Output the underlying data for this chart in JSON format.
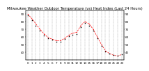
{
  "title": "Milwaukee Weather Outdoor Temperature (vs) Heat Index (Last 24 Hours)",
  "x_ticks": [
    0,
    1,
    2,
    3,
    4,
    5,
    6,
    7,
    8,
    9,
    10,
    11,
    12,
    13,
    14,
    15,
    16,
    17,
    18,
    19,
    20,
    21,
    22,
    23
  ],
  "temp_values": [
    88,
    82,
    75,
    68,
    62,
    58,
    56,
    54,
    54,
    57,
    61,
    63,
    64,
    73,
    78,
    75,
    68,
    58,
    48,
    41,
    38,
    36,
    35,
    37
  ],
  "heat_values": [
    90,
    84,
    77,
    70,
    64,
    59,
    57,
    55,
    55,
    58,
    62,
    65,
    66,
    75,
    80,
    77,
    70,
    60,
    50,
    42,
    38,
    36,
    35,
    37
  ],
  "temp_color": "#000000",
  "heat_color": "#ff0000",
  "bg_color": "#ffffff",
  "grid_color": "#999999",
  "ylim": [
    30,
    95
  ],
  "yticks": [
    40,
    50,
    60,
    70,
    80,
    90
  ],
  "title_fontsize": 3.8,
  "tick_fontsize": 3.0
}
